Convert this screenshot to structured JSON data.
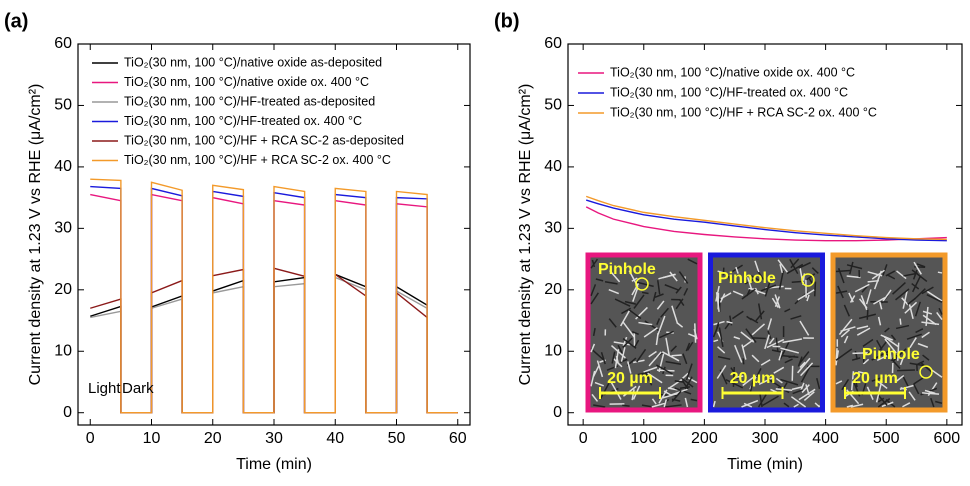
{
  "chart_data": [
    {
      "type": "line",
      "panel_label": "(a)",
      "x_label": "Time (min)",
      "y_label": "Current density at 1.23 V vs RHE (μA/cm²)",
      "xlim": [
        -2,
        62
      ],
      "xticks": [
        0,
        10,
        20,
        30,
        40,
        50,
        60
      ],
      "ylim": [
        -2,
        60
      ],
      "yticks": [
        0,
        10,
        20,
        30,
        40,
        50,
        60
      ],
      "x": [
        0,
        5,
        5,
        10,
        10,
        15,
        15,
        20,
        20,
        25,
        25,
        30,
        30,
        35,
        35,
        40,
        40,
        45,
        45,
        50,
        50,
        55,
        55,
        60
      ],
      "annotations": [
        "Light",
        "Dark"
      ],
      "series": [
        {
          "name": "TiO₂(30 nm, 100 °C)/native oxide as-deposited",
          "color": "#000000",
          "values": [
            15.7,
            17.3,
            0,
            0,
            17.2,
            19,
            0,
            0,
            19.8,
            21.5,
            0,
            0,
            21.3,
            22,
            0,
            0,
            22.5,
            20.5,
            0,
            0,
            20.5,
            17.5,
            0,
            0
          ]
        },
        {
          "name": "TiO₂(30 nm, 100 °C)/native oxide ox. 400 °C",
          "color": "#e8177f",
          "values": [
            35.5,
            34.5,
            0,
            0,
            35.5,
            34.5,
            0,
            0,
            35,
            34,
            0,
            0,
            34.5,
            33.8,
            0,
            0,
            34.5,
            33.8,
            0,
            0,
            34,
            33.5,
            0,
            0
          ]
        },
        {
          "name": "TiO₂(30 nm, 100 °C)/HF-treated as-deposited",
          "color": "#999999",
          "values": [
            15.5,
            16.5,
            0,
            0,
            17,
            18.5,
            0,
            0,
            19.5,
            20.5,
            0,
            0,
            20.5,
            21,
            0,
            0,
            22,
            20,
            0,
            0,
            19.8,
            17,
            0,
            0
          ]
        },
        {
          "name": "TiO₂(30 nm, 100 °C)/HF-treated ox. 400 °C",
          "color": "#1a1adc",
          "values": [
            36.8,
            36.5,
            0,
            0,
            36.5,
            35.3,
            0,
            0,
            36,
            35.2,
            0,
            0,
            35.8,
            35,
            0,
            0,
            35.5,
            35,
            0,
            0,
            35,
            34.8,
            0,
            0
          ]
        },
        {
          "name": "TiO₂(30 nm, 100 °C)/HF + RCA SC-2 as-deposited",
          "color": "#8b1a1a",
          "values": [
            17,
            18.5,
            0,
            0,
            19.5,
            21.5,
            0,
            0,
            22.3,
            23.3,
            0,
            0,
            23.5,
            22.2,
            0,
            0,
            22.5,
            19,
            0,
            0,
            19.5,
            15.5,
            0,
            0
          ]
        },
        {
          "name": "TiO₂(30 nm, 100 °C)/HF + RCA SC-2 ox. 400 °C",
          "color": "#f39a2a",
          "values": [
            38,
            37.8,
            0,
            0,
            37.5,
            36.2,
            0,
            0,
            37,
            36.3,
            0,
            0,
            36.8,
            36,
            0,
            0,
            36.5,
            36,
            0,
            0,
            36,
            35.5,
            0,
            0
          ]
        }
      ]
    },
    {
      "type": "line",
      "panel_label": "(b)",
      "x_label": "Time (min)",
      "y_label": "Current density at 1.23 V vs RHE (μA/cm²)",
      "xlim": [
        -25,
        625
      ],
      "xticks": [
        0,
        100,
        200,
        300,
        400,
        500,
        600
      ],
      "ylim": [
        -2,
        60
      ],
      "yticks": [
        0,
        10,
        20,
        30,
        40,
        50,
        60
      ],
      "x": [
        5,
        25,
        50,
        100,
        150,
        200,
        250,
        300,
        350,
        400,
        450,
        500,
        550,
        600
      ],
      "insets": [
        {
          "label": "Pinhole",
          "scale": "20 µm",
          "border": "#e8177f"
        },
        {
          "label": "Pinhole",
          "scale": "20 µm",
          "border": "#1a1adc"
        },
        {
          "label": "Pinhole",
          "scale": "20 µm",
          "border": "#f39a2a"
        }
      ],
      "series": [
        {
          "name": "TiO₂(30 nm, 100 °C)/native oxide ox. 400 °C",
          "color": "#e8177f",
          "values": [
            33.5,
            32.5,
            31.5,
            30.3,
            29.5,
            29,
            28.6,
            28.3,
            28.1,
            28,
            28,
            28.1,
            28.3,
            28.5
          ]
        },
        {
          "name": "TiO₂(30 nm, 100 °C)/HF-treated ox. 400 °C",
          "color": "#1a1adc",
          "values": [
            34.6,
            34,
            33.3,
            32.2,
            31.5,
            31,
            30.4,
            29.8,
            29.3,
            28.9,
            28.6,
            28.3,
            28.1,
            28
          ]
        },
        {
          "name": "TiO₂(30 nm, 100 °C)/HF + RCA SC-2 ox. 400 °C",
          "color": "#f39a2a",
          "values": [
            35.2,
            34.5,
            33.7,
            32.6,
            31.9,
            31.3,
            30.7,
            30.1,
            29.6,
            29.2,
            28.8,
            28.5,
            28.3,
            28.2
          ]
        }
      ]
    }
  ]
}
